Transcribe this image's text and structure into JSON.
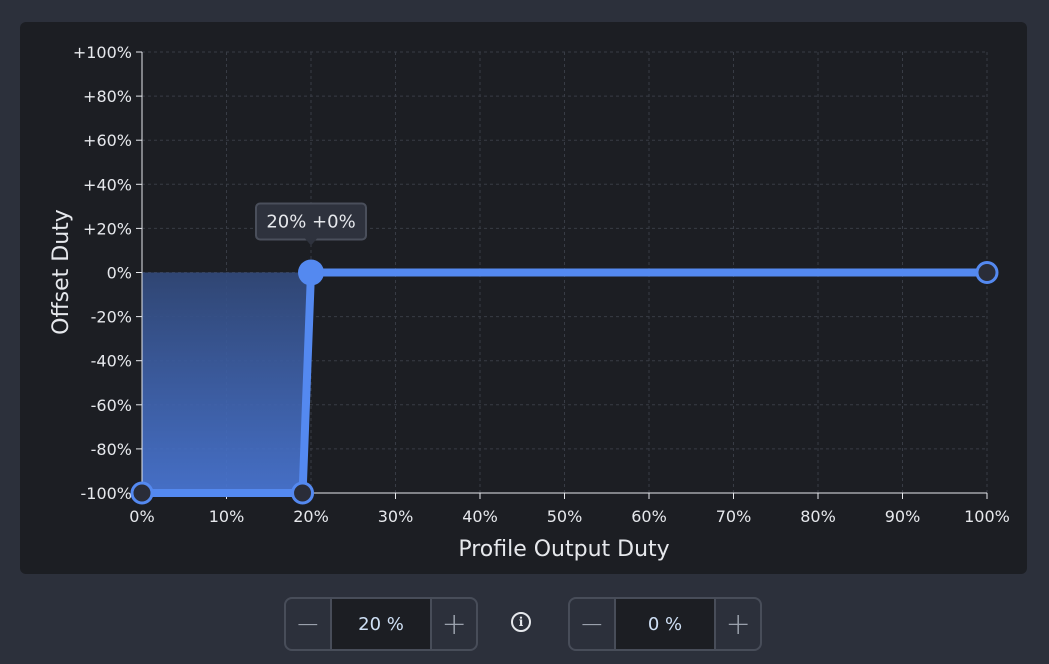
{
  "chart_data": {
    "type": "line",
    "xlabel": "Profile Output Duty",
    "ylabel": "Offset Duty",
    "xlim": [
      0,
      100
    ],
    "ylim": [
      -100,
      100
    ],
    "x_ticks": [
      "0%",
      "10%",
      "20%",
      "30%",
      "40%",
      "50%",
      "60%",
      "70%",
      "80%",
      "90%",
      "100%"
    ],
    "y_ticks": [
      "+100%",
      "+80%",
      "+60%",
      "+40%",
      "+20%",
      "0%",
      "-20%",
      "-40%",
      "-60%",
      "-80%",
      "-100%"
    ],
    "grid": true,
    "points": [
      {
        "x": 0,
        "y": -100
      },
      {
        "x": 19,
        "y": -100
      },
      {
        "x": 20,
        "y": 0
      },
      {
        "x": 100,
        "y": 0
      }
    ],
    "selected_index": 2,
    "tooltip": "20% +0%",
    "color": "#5489f0"
  },
  "controls": {
    "left": {
      "value": "20 %",
      "minus": "−",
      "plus": "+"
    },
    "right": {
      "value": "0 %",
      "minus": "−",
      "plus": "+"
    },
    "info_icon": "i"
  }
}
